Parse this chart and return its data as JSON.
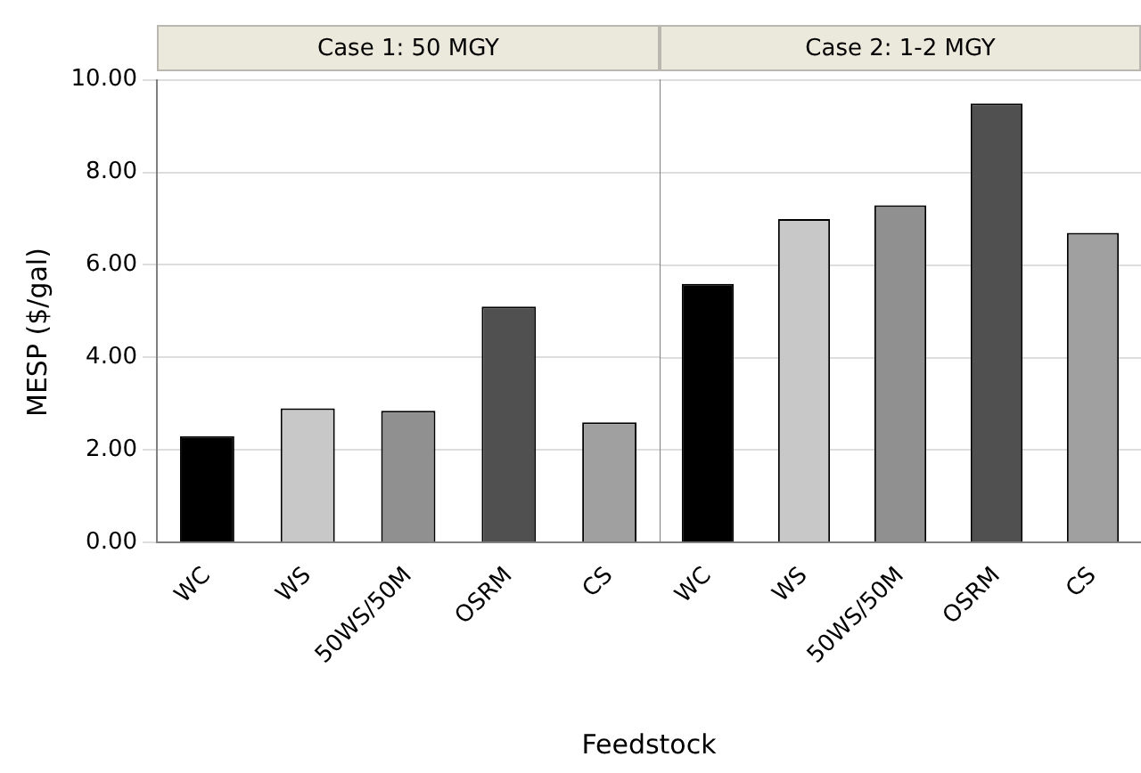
{
  "chart_data": [
    {
      "type": "bar",
      "title": "Case 1: 50 MGY",
      "xlabel": "Feedstock",
      "ylabel": "MESP ($/gal)",
      "categories": [
        "WC",
        "WS",
        "50WS/50M",
        "OSRM",
        "CS"
      ],
      "values": [
        2.3,
        2.9,
        2.85,
        5.1,
        2.6
      ],
      "colors": [
        "#000000",
        "#c8c8c8",
        "#909090",
        "#505050",
        "#a0a0a0"
      ],
      "ylim": [
        0,
        10
      ],
      "yticks": [
        {
          "value": 0,
          "label": "0.00"
        },
        {
          "value": 2,
          "label": "2.00"
        },
        {
          "value": 4,
          "label": "4.00"
        },
        {
          "value": 6,
          "label": "6.00"
        },
        {
          "value": 8,
          "label": "8.00"
        },
        {
          "value": 10,
          "label": "10.00"
        }
      ],
      "grid": "y",
      "legend": false
    },
    {
      "type": "bar",
      "title": "Case 2: 1-2 MGY",
      "categories": [
        "WC",
        "WS",
        "50WS/50M",
        "OSRM",
        "CS"
      ],
      "values": [
        5.6,
        7.0,
        7.3,
        9.5,
        6.7
      ],
      "colors": [
        "#000000",
        "#c8c8c8",
        "#909090",
        "#505050",
        "#a0a0a0"
      ],
      "ylim": [
        0,
        10
      ],
      "yticks": [
        0,
        2,
        4,
        6,
        8,
        10
      ],
      "grid": "y",
      "legend": false,
      "tick_labels": "x"
    }
  ]
}
